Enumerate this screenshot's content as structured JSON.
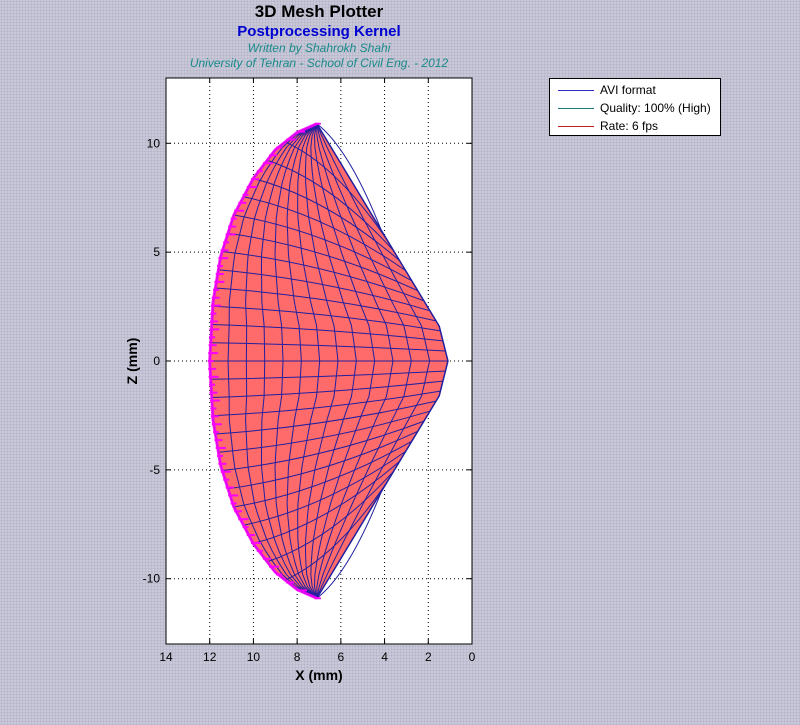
{
  "titles": {
    "main": "3D Mesh Plotter",
    "sub": "Postprocessing Kernel",
    "author": "Written by Shahrokh Shahi",
    "affiliation": "University of Tehran - School of Civil Eng. - 2012"
  },
  "legend": {
    "entries": [
      {
        "label": "AVI format",
        "color": "#3030c0"
      },
      {
        "label": "Quality: 100% (High)",
        "color": "#208080"
      },
      {
        "label": "Rate: 6 fps",
        "color": "#c02020"
      }
    ]
  },
  "colors": {
    "fill": "#ff6a6a",
    "mesh": "#2020a0",
    "edge_marks": "#ff00ff",
    "axes_bg": "#ffffff",
    "grid": "#000000"
  },
  "chart_data": {
    "type": "mesh",
    "xlabel": "X (mm)",
    "ylabel": "Z (mm)",
    "xlim": [
      14,
      0
    ],
    "ylim": [
      -13,
      13
    ],
    "x_reversed": true,
    "grid": true,
    "x_ticks": [
      14,
      12,
      10,
      8,
      6,
      4,
      2,
      0
    ],
    "y_ticks": [
      10,
      5,
      0,
      -5,
      -10
    ],
    "outline_left": [
      [
        7.1,
        10.9
      ],
      [
        8.0,
        10.5
      ],
      [
        9.0,
        9.7
      ],
      [
        10.0,
        8.4
      ],
      [
        10.9,
        6.7
      ],
      [
        11.5,
        4.8
      ],
      [
        11.85,
        2.7
      ],
      [
        12.0,
        0.0
      ],
      [
        11.85,
        -2.7
      ],
      [
        11.5,
        -4.8
      ],
      [
        10.9,
        -6.7
      ],
      [
        10.0,
        -8.4
      ],
      [
        9.0,
        -9.7
      ],
      [
        8.0,
        -10.5
      ],
      [
        7.1,
        -10.9
      ]
    ],
    "tip": [
      1.1,
      0.0
    ],
    "tip_top": [
      1.5,
      1.6
    ],
    "tip_bottom": [
      1.5,
      -1.6
    ],
    "legend_position": "top-right"
  }
}
